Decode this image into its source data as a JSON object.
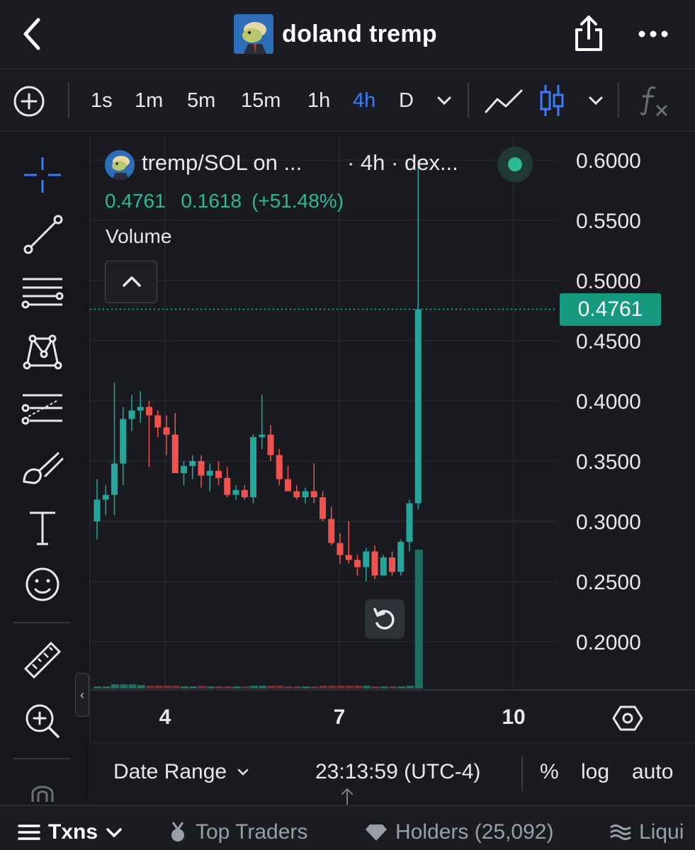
{
  "header": {
    "title": "doland tremp"
  },
  "toolbar": {
    "intervals": [
      "1s",
      "1m",
      "5m",
      "15m",
      "1h",
      "4h",
      "D"
    ],
    "active_interval": "4h"
  },
  "legend": {
    "symbol": "tremp/SOL on ...",
    "meta": "· 4h · dex...",
    "price": "0.4761",
    "change": "0.1618",
    "change_pct": "(+51.48%)",
    "volume_label": "Volume"
  },
  "price_tag": "0.4761",
  "colors": {
    "up": "#26a69a",
    "down": "#ef5350",
    "accent": "#3d7bfd",
    "tag": "#15997f"
  },
  "chart_data": {
    "type": "candlestick",
    "y_ticks": [
      "0.6000",
      "0.5500",
      "0.5000",
      "0.4500",
      "0.4000",
      "0.3500",
      "0.3000",
      "0.2500",
      "0.2000"
    ],
    "x_ticks": [
      "4",
      "7",
      "10"
    ],
    "ylim": [
      0.16,
      0.6
    ],
    "last_price": 0.4761,
    "candles": [
      {
        "o": 0.3,
        "h": 0.335,
        "l": 0.285,
        "c": 0.318
      },
      {
        "o": 0.318,
        "h": 0.33,
        "l": 0.305,
        "c": 0.322
      },
      {
        "o": 0.322,
        "h": 0.415,
        "l": 0.305,
        "c": 0.348
      },
      {
        "o": 0.348,
        "h": 0.395,
        "l": 0.33,
        "c": 0.385
      },
      {
        "o": 0.385,
        "h": 0.405,
        "l": 0.375,
        "c": 0.392
      },
      {
        "o": 0.392,
        "h": 0.408,
        "l": 0.382,
        "c": 0.395
      },
      {
        "o": 0.395,
        "h": 0.4,
        "l": 0.345,
        "c": 0.388
      },
      {
        "o": 0.388,
        "h": 0.392,
        "l": 0.37,
        "c": 0.378
      },
      {
        "o": 0.378,
        "h": 0.388,
        "l": 0.355,
        "c": 0.372
      },
      {
        "o": 0.372,
        "h": 0.39,
        "l": 0.34,
        "c": 0.34
      },
      {
        "o": 0.34,
        "h": 0.35,
        "l": 0.33,
        "c": 0.346
      },
      {
        "o": 0.346,
        "h": 0.355,
        "l": 0.335,
        "c": 0.35
      },
      {
        "o": 0.35,
        "h": 0.355,
        "l": 0.328,
        "c": 0.338
      },
      {
        "o": 0.338,
        "h": 0.348,
        "l": 0.325,
        "c": 0.342
      },
      {
        "o": 0.342,
        "h": 0.35,
        "l": 0.33,
        "c": 0.336
      },
      {
        "o": 0.336,
        "h": 0.345,
        "l": 0.32,
        "c": 0.322
      },
      {
        "o": 0.322,
        "h": 0.33,
        "l": 0.318,
        "c": 0.326
      },
      {
        "o": 0.326,
        "h": 0.33,
        "l": 0.318,
        "c": 0.32
      },
      {
        "o": 0.32,
        "h": 0.372,
        "l": 0.315,
        "c": 0.37
      },
      {
        "o": 0.37,
        "h": 0.405,
        "l": 0.36,
        "c": 0.372
      },
      {
        "o": 0.372,
        "h": 0.38,
        "l": 0.35,
        "c": 0.355
      },
      {
        "o": 0.355,
        "h": 0.36,
        "l": 0.33,
        "c": 0.335
      },
      {
        "o": 0.335,
        "h": 0.346,
        "l": 0.325,
        "c": 0.325
      },
      {
        "o": 0.325,
        "h": 0.33,
        "l": 0.318,
        "c": 0.32
      },
      {
        "o": 0.32,
        "h": 0.328,
        "l": 0.315,
        "c": 0.325
      },
      {
        "o": 0.325,
        "h": 0.348,
        "l": 0.315,
        "c": 0.32
      },
      {
        "o": 0.32,
        "h": 0.325,
        "l": 0.3,
        "c": 0.302
      },
      {
        "o": 0.302,
        "h": 0.312,
        "l": 0.28,
        "c": 0.282
      },
      {
        "o": 0.282,
        "h": 0.29,
        "l": 0.265,
        "c": 0.272
      },
      {
        "o": 0.272,
        "h": 0.3,
        "l": 0.265,
        "c": 0.268
      },
      {
        "o": 0.268,
        "h": 0.272,
        "l": 0.255,
        "c": 0.262
      },
      {
        "o": 0.262,
        "h": 0.278,
        "l": 0.25,
        "c": 0.275
      },
      {
        "o": 0.275,
        "h": 0.28,
        "l": 0.252,
        "c": 0.255
      },
      {
        "o": 0.255,
        "h": 0.272,
        "l": 0.255,
        "c": 0.27
      },
      {
        "o": 0.27,
        "h": 0.275,
        "l": 0.255,
        "c": 0.258
      },
      {
        "o": 0.258,
        "h": 0.285,
        "l": 0.255,
        "c": 0.283
      },
      {
        "o": 0.283,
        "h": 0.318,
        "l": 0.275,
        "c": 0.315
      },
      {
        "o": 0.315,
        "h": 0.6,
        "l": 0.31,
        "c": 0.4761
      }
    ],
    "volume_relative": [
      0.015,
      0.015,
      0.03,
      0.03,
      0.03,
      0.025,
      0.02,
      0.02,
      0.02,
      0.02,
      0.015,
      0.015,
      0.02,
      0.015,
      0.015,
      0.015,
      0.015,
      0.015,
      0.02,
      0.02,
      0.02,
      0.02,
      0.015,
      0.015,
      0.015,
      0.015,
      0.02,
      0.02,
      0.02,
      0.02,
      0.02,
      0.02,
      0.015,
      0.015,
      0.015,
      0.015,
      0.02,
      1.0
    ]
  },
  "bottom": {
    "date_range": "Date Range",
    "time": "23:13:59 (UTC-4)",
    "percent": "%",
    "log": "log",
    "auto": "auto"
  },
  "tabs": {
    "txns": "Txns",
    "top_traders": "Top Traders",
    "holders": "Holders (25,092)",
    "liquidity": "Liqui"
  }
}
